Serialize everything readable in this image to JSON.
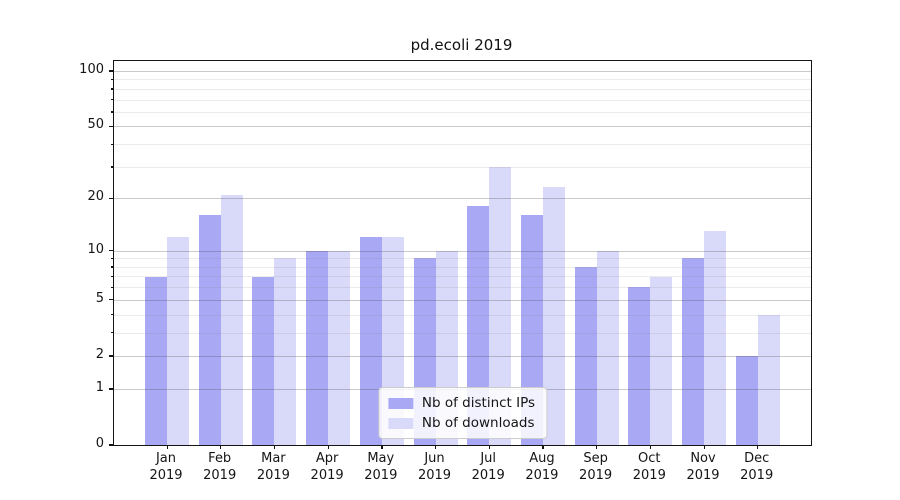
{
  "title": "pd.ecoli 2019",
  "colors": {
    "distinct_ips": "#a8a8f5",
    "downloads": "#d9d9f9",
    "grid_major": "rgba(80,80,80,0.30)",
    "grid_minor": "rgba(130,130,130,0.16)",
    "axis": "#141414",
    "legend_border": "#cccccc"
  },
  "chart_data": {
    "type": "bar",
    "title": "pd.ecoli 2019",
    "categories": [
      "Jan 2019",
      "Feb 2019",
      "Mar 2019",
      "Apr 2019",
      "May 2019",
      "Jun 2019",
      "Jul 2019",
      "Aug 2019",
      "Sep 2019",
      "Oct 2019",
      "Nov 2019",
      "Dec 2019"
    ],
    "series": [
      {
        "name": "Nb of distinct IPs",
        "color_key": "distinct_ips",
        "values": [
          7,
          16,
          7,
          10,
          12,
          9,
          18,
          16,
          8,
          6,
          9,
          2
        ]
      },
      {
        "name": "Nb of downloads",
        "color_key": "downloads",
        "values": [
          12,
          21,
          9,
          10,
          12,
          10,
          30,
          23,
          10,
          7,
          13,
          4
        ]
      }
    ],
    "yscale": "log1p",
    "ylim": [
      0,
      113
    ],
    "yticks": [
      0,
      1,
      2,
      5,
      10,
      20,
      50,
      100
    ],
    "y_minor_gridlines": [
      3,
      4,
      6,
      7,
      8,
      9,
      30,
      40,
      60,
      70,
      80,
      90
    ],
    "xlabel": "",
    "ylabel": "",
    "grid": "on",
    "legend_position": "lower center"
  },
  "legend": {
    "entries": [
      "Nb of distinct IPs",
      "Nb of downloads"
    ]
  }
}
